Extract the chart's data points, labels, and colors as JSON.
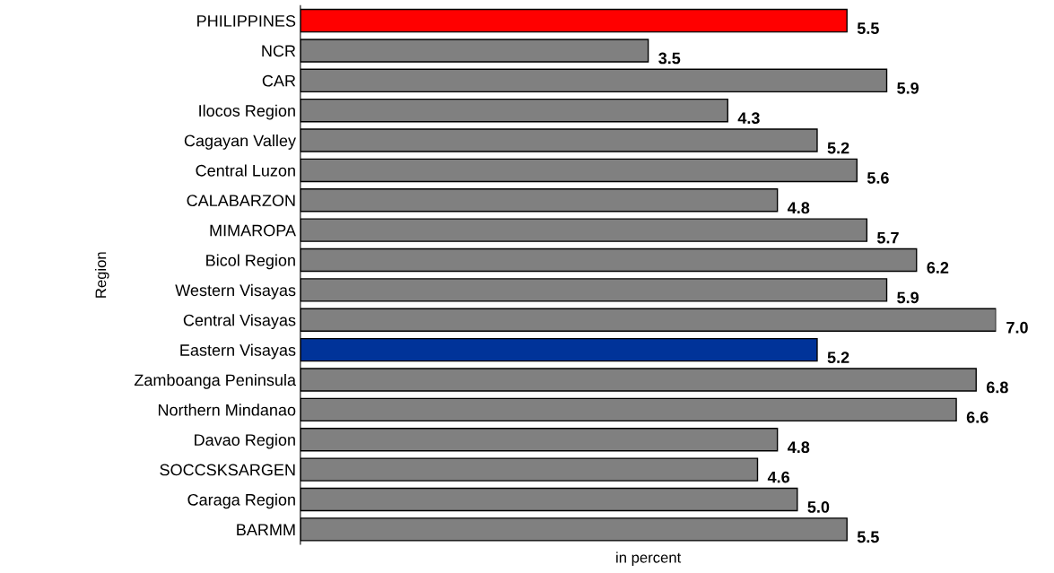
{
  "chart_data": {
    "type": "bar",
    "orientation": "horizontal",
    "xlabel": "in percent",
    "ylabel": "Region",
    "categories": [
      "PHILIPPINES",
      "NCR",
      "CAR",
      "Ilocos Region",
      "Cagayan Valley",
      "Central Luzon",
      "CALABARZON",
      "MIMAROPA",
      "Bicol Region",
      "Western Visayas",
      "Central Visayas",
      "Eastern Visayas",
      "Zamboanga Peninsula",
      "Northern Mindanao",
      "Davao Region",
      "SOCCSKSARGEN",
      "Caraga Region",
      "BARMM"
    ],
    "values": [
      5.5,
      3.5,
      5.9,
      4.3,
      5.2,
      5.6,
      4.8,
      5.7,
      6.2,
      5.9,
      7.0,
      5.2,
      6.8,
      6.6,
      4.8,
      4.6,
      5.0,
      5.5
    ],
    "colors": [
      "#ff0000",
      "#808080",
      "#808080",
      "#808080",
      "#808080",
      "#808080",
      "#808080",
      "#808080",
      "#808080",
      "#808080",
      "#808080",
      "#003399",
      "#808080",
      "#808080",
      "#808080",
      "#808080",
      "#808080",
      "#808080"
    ],
    "value_labels": [
      "5.5",
      "3.5",
      "5.9",
      "4.3",
      "5.2",
      "5.6",
      "4.8",
      "5.7",
      "6.2",
      "5.9",
      "7.0",
      "5.2",
      "6.8",
      "6.6",
      "4.8",
      "4.6",
      "5.0",
      "5.5"
    ],
    "grid": false,
    "legend": false,
    "tick_labels": "y"
  }
}
